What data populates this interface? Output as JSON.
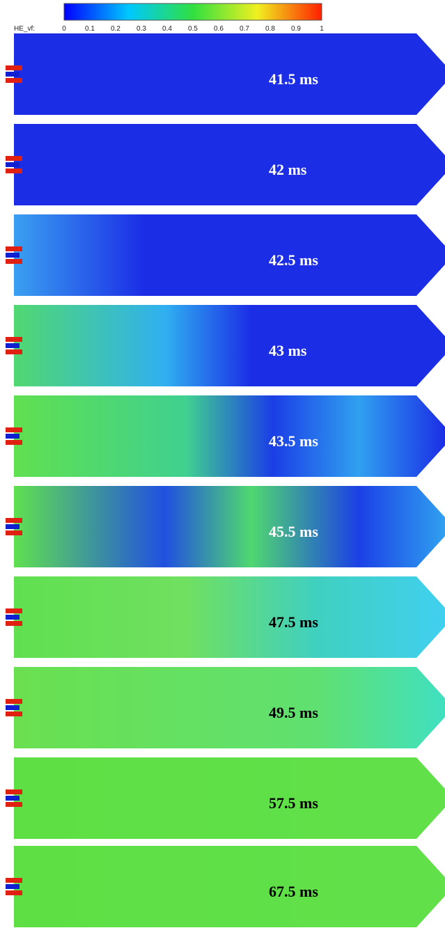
{
  "colorbar": {
    "label": "HE_vf:",
    "ticks": [
      "0",
      "0.1",
      "0.2",
      "0.3",
      "0.4",
      "0.5",
      "0.6",
      "0.7",
      "0.8",
      "0.9",
      "1"
    ]
  },
  "panels": [
    {
      "label": "41.5 ms"
    },
    {
      "label": "42 ms"
    },
    {
      "label": "42.5 ms"
    },
    {
      "label": "43 ms"
    },
    {
      "label": "43.5 ms"
    },
    {
      "label": "45.5 ms"
    },
    {
      "label": "47.5 ms"
    },
    {
      "label": "49.5 ms"
    },
    {
      "label": "57.5 ms"
    },
    {
      "label": "67.5 ms"
    }
  ]
}
